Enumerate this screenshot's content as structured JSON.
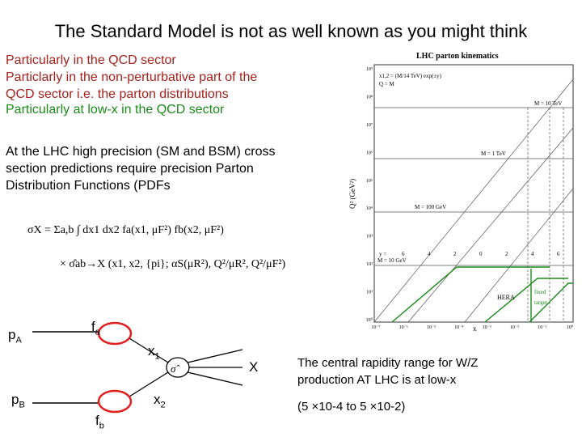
{
  "slide": {
    "title": "The Standard Model is not as well known as you might think",
    "red_lines": [
      "Particularly in the QCD sector",
      "Particlarly in the non-perturbative part of the",
      "QCD sector i.e. the parton distributions"
    ],
    "green_line": "Particularly at low-x in the QCD sector",
    "body_lines": [
      "At the LHC high precision (SM and BSM) cross",
      "section predictions require precision Parton",
      "Distribution Functions (PDFs"
    ],
    "rapidity_lines": [
      "The central rapidity range for W/Z",
      "production AT LHC is at low-x"
    ],
    "range_text": "(5 ×10-4 to 5 ×10-2)"
  },
  "formula": {
    "line1": "σX = Σa,b ∫ dx1 dx2 fa(x1, μF²) fb(x2, μF²)",
    "line2": "× σ̂ab→X (x1, x2, {pi}; αS(μR²), Q²/μR², Q²/μF²)"
  },
  "diagram": {
    "pa": "p",
    "pa_sub": "A",
    "pb": "p",
    "pb_sub": "B",
    "fa": "f",
    "fa_sub": "a",
    "fb": "f",
    "fb_sub": "b",
    "x1": "x",
    "x1_sub": "1",
    "x2": "x",
    "x2_sub": "2",
    "sigma": "σ̂",
    "X": "X",
    "blob_color": "#e02020"
  },
  "kinematics": {
    "title": "LHC parton kinematics",
    "legend_line1": "x1,2 = (M/14 TeV) exp(±y)",
    "legend_line2": "Q = M",
    "ylabel": "Q² (GeV²)",
    "xlabel": "x",
    "y_ticks": [
      "10⁹",
      "10⁸",
      "10⁷",
      "10⁶",
      "10⁵",
      "10⁴",
      "10³",
      "10²",
      "10¹",
      "10⁰"
    ],
    "x_ticks": [
      "10⁻⁷",
      "10⁻⁶",
      "10⁻⁵",
      "10⁻⁴",
      "10⁻³",
      "10⁻²",
      "10⁻¹",
      "10⁰"
    ],
    "mass_labels": [
      "M = 10 TeV",
      "M = 1 TeV",
      "M = 100 GeV",
      "M = 10 GeV"
    ],
    "rapidity_label": "y =",
    "rapidity_values": [
      "6",
      "4",
      "2",
      "0",
      "2",
      "4",
      "6"
    ],
    "hera_label": "HERA",
    "fixed_label_1": "fixed",
    "fixed_label_2": "target",
    "region_color": "#1a8a1a",
    "line_color": "#555555"
  }
}
